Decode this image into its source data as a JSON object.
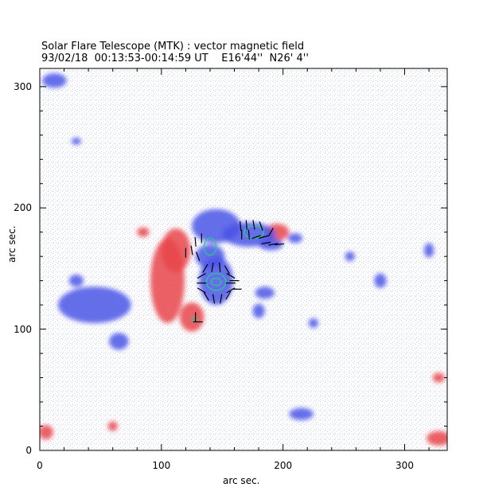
{
  "header": {
    "title": "Solar Flare Telescope (MTK) : vector magnetic field",
    "subtitle": "93/02/18  00:13:53-00:14:59 UT    E16'44''  N26' 4''"
  },
  "axes": {
    "xlabel": "arc sec.",
    "ylabel": "arc sec.",
    "xlim": [
      0,
      335
    ],
    "ylim": [
      0,
      315
    ],
    "xticks": [
      "0",
      "100",
      "200",
      "300"
    ],
    "xtick_values": [
      0,
      100,
      200,
      300
    ],
    "yticks": [
      "0",
      "100",
      "200",
      "300"
    ],
    "ytick_values": [
      0,
      100,
      200,
      300
    ]
  },
  "colors": {
    "positive_field": "#e8474b",
    "negative_field": "#4b55e6",
    "contour": "#22cc88",
    "vectors": "#000000"
  },
  "field_regions": [
    {
      "polarity": "positive",
      "cx": 105,
      "cy": 140,
      "rx": 14,
      "ry": 35
    },
    {
      "polarity": "positive",
      "cx": 112,
      "cy": 165,
      "rx": 12,
      "ry": 18
    },
    {
      "polarity": "positive",
      "cx": 125,
      "cy": 110,
      "rx": 10,
      "ry": 12
    },
    {
      "polarity": "positive",
      "cx": 195,
      "cy": 180,
      "rx": 10,
      "ry": 7
    },
    {
      "polarity": "positive",
      "cx": 85,
      "cy": 180,
      "rx": 5,
      "ry": 4
    },
    {
      "polarity": "positive",
      "cx": 5,
      "cy": 15,
      "rx": 6,
      "ry": 6
    },
    {
      "polarity": "positive",
      "cx": 60,
      "cy": 20,
      "rx": 4,
      "ry": 4
    },
    {
      "polarity": "positive",
      "cx": 328,
      "cy": 10,
      "rx": 10,
      "ry": 6
    },
    {
      "polarity": "positive",
      "cx": 328,
      "cy": 60,
      "rx": 5,
      "ry": 4
    },
    {
      "polarity": "negative",
      "cx": 145,
      "cy": 185,
      "rx": 20,
      "ry": 14
    },
    {
      "polarity": "negative",
      "cx": 172,
      "cy": 178,
      "rx": 22,
      "ry": 10
    },
    {
      "polarity": "negative",
      "cx": 145,
      "cy": 140,
      "rx": 14,
      "ry": 20
    },
    {
      "polarity": "negative",
      "cx": 140,
      "cy": 160,
      "rx": 12,
      "ry": 10
    },
    {
      "polarity": "negative",
      "cx": 45,
      "cy": 120,
      "rx": 30,
      "ry": 15
    },
    {
      "polarity": "negative",
      "cx": 65,
      "cy": 90,
      "rx": 8,
      "ry": 7
    },
    {
      "polarity": "negative",
      "cx": 30,
      "cy": 140,
      "rx": 6,
      "ry": 5
    },
    {
      "polarity": "negative",
      "cx": 12,
      "cy": 305,
      "rx": 10,
      "ry": 6
    },
    {
      "polarity": "negative",
      "cx": 190,
      "cy": 170,
      "rx": 10,
      "ry": 5
    },
    {
      "polarity": "negative",
      "cx": 210,
      "cy": 175,
      "rx": 6,
      "ry": 4
    },
    {
      "polarity": "negative",
      "cx": 185,
      "cy": 130,
      "rx": 8,
      "ry": 5
    },
    {
      "polarity": "negative",
      "cx": 180,
      "cy": 115,
      "rx": 5,
      "ry": 6
    },
    {
      "polarity": "negative",
      "cx": 225,
      "cy": 105,
      "rx": 4,
      "ry": 4
    },
    {
      "polarity": "negative",
      "cx": 280,
      "cy": 140,
      "rx": 5,
      "ry": 6
    },
    {
      "polarity": "negative",
      "cx": 320,
      "cy": 165,
      "rx": 4,
      "ry": 6
    },
    {
      "polarity": "negative",
      "cx": 255,
      "cy": 160,
      "rx": 4,
      "ry": 4
    },
    {
      "polarity": "negative",
      "cx": 215,
      "cy": 30,
      "rx": 10,
      "ry": 5
    },
    {
      "polarity": "negative",
      "cx": 30,
      "cy": 255,
      "rx": 4,
      "ry": 3
    }
  ],
  "contours": [
    {
      "cx": 145,
      "cy": 139,
      "rx": 8,
      "ry": 7
    },
    {
      "cx": 145,
      "cy": 139,
      "rx": 4,
      "ry": 3
    },
    {
      "cx": 140,
      "cy": 168,
      "rx": 5,
      "ry": 7
    },
    {
      "cx": 176,
      "cy": 180,
      "rx": 8,
      "ry": 5
    },
    {
      "cx": 127,
      "cy": 108,
      "rx": 2,
      "ry": 2
    }
  ],
  "vectors": [
    {
      "x": 136,
      "y": 150,
      "a": 60
    },
    {
      "x": 142,
      "y": 151,
      "a": 80
    },
    {
      "x": 148,
      "y": 151,
      "a": 95
    },
    {
      "x": 154,
      "y": 149,
      "a": 120
    },
    {
      "x": 133,
      "y": 144,
      "a": 30
    },
    {
      "x": 157,
      "y": 144,
      "a": 150
    },
    {
      "x": 133,
      "y": 138,
      "a": 0
    },
    {
      "x": 157,
      "y": 138,
      "a": 0
    },
    {
      "x": 133,
      "y": 132,
      "a": 150
    },
    {
      "x": 157,
      "y": 132,
      "a": 30
    },
    {
      "x": 137,
      "y": 127,
      "a": 120
    },
    {
      "x": 143,
      "y": 125,
      "a": 100
    },
    {
      "x": 149,
      "y": 125,
      "a": 80
    },
    {
      "x": 155,
      "y": 128,
      "a": 60
    },
    {
      "x": 160,
      "y": 140,
      "a": 0
    },
    {
      "x": 162,
      "y": 133,
      "a": 0
    },
    {
      "x": 125,
      "y": 165,
      "a": 100
    },
    {
      "x": 128,
      "y": 172,
      "a": 95
    },
    {
      "x": 130,
      "y": 160,
      "a": 110
    },
    {
      "x": 133,
      "y": 175,
      "a": 90
    },
    {
      "x": 120,
      "y": 163,
      "a": 90
    },
    {
      "x": 165,
      "y": 185,
      "a": 95
    },
    {
      "x": 170,
      "y": 186,
      "a": 95
    },
    {
      "x": 176,
      "y": 186,
      "a": 100
    },
    {
      "x": 182,
      "y": 185,
      "a": 110
    },
    {
      "x": 166,
      "y": 178,
      "a": 90
    },
    {
      "x": 172,
      "y": 178,
      "a": 95
    },
    {
      "x": 178,
      "y": 176,
      "a": 20
    },
    {
      "x": 184,
      "y": 176,
      "a": 15
    },
    {
      "x": 186,
      "y": 171,
      "a": 10
    },
    {
      "x": 192,
      "y": 170,
      "a": 10
    },
    {
      "x": 197,
      "y": 170,
      "a": 5
    },
    {
      "x": 190,
      "y": 180,
      "a": 60
    },
    {
      "x": 128,
      "y": 110,
      "a": 90
    },
    {
      "x": 130,
      "y": 106,
      "a": 0
    }
  ]
}
